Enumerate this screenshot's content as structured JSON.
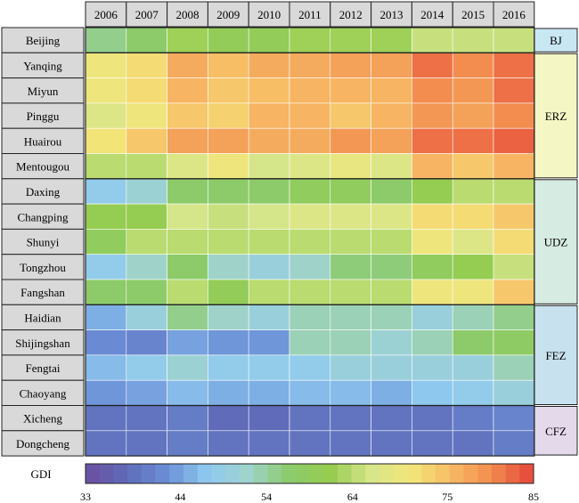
{
  "chart_data": {
    "type": "heatmap",
    "years": [
      "2006",
      "2007",
      "2008",
      "2009",
      "2010",
      "2011",
      "2012",
      "2013",
      "2014",
      "2015",
      "2016"
    ],
    "rows": [
      "Beijing",
      "Yanqing",
      "Miyun",
      "Pinggu",
      "Huairou",
      "Mentougou",
      "Daxing",
      "Changping",
      "Shunyi",
      "Tongzhou",
      "Fangshan",
      "Haidian",
      "Shijingshan",
      "Fengtai",
      "Chaoyang",
      "Xicheng",
      "Dongcheng"
    ],
    "values": [
      [
        55,
        57,
        62,
        60,
        60,
        62,
        62,
        62,
        65,
        65,
        65
      ],
      [
        70,
        72,
        77,
        75,
        77,
        77,
        78,
        78,
        82,
        80,
        82
      ],
      [
        70,
        72,
        76,
        74,
        75,
        76,
        76,
        76,
        80,
        79,
        82
      ],
      [
        67,
        70,
        74,
        73,
        76,
        76,
        74,
        76,
        79,
        78,
        80
      ],
      [
        71,
        74,
        78,
        78,
        77,
        77,
        79,
        78,
        82,
        82,
        83
      ],
      [
        64,
        64,
        67,
        70,
        66,
        67,
        69,
        67,
        76,
        74,
        76
      ],
      [
        48,
        51,
        57,
        57,
        57,
        59,
        59,
        57,
        61,
        64,
        64
      ],
      [
        61,
        61,
        66,
        65,
        66,
        67,
        67,
        67,
        72,
        72,
        74
      ],
      [
        59,
        64,
        64,
        64,
        64,
        64,
        64,
        64,
        70,
        67,
        72
      ],
      [
        48,
        52,
        57,
        52,
        50,
        52,
        56,
        56,
        59,
        61,
        65
      ],
      [
        57,
        57,
        64,
        60,
        64,
        64,
        64,
        64,
        70,
        70,
        74
      ],
      [
        45,
        50,
        55,
        52,
        50,
        53,
        53,
        53,
        50,
        53,
        55
      ],
      [
        42,
        41,
        44,
        43,
        43,
        53,
        53,
        51,
        53,
        57,
        58
      ],
      [
        46,
        48,
        51,
        48,
        48,
        48,
        50,
        50,
        50,
        50,
        53
      ],
      [
        43,
        44,
        46,
        45,
        45,
        46,
        46,
        45,
        47,
        48,
        50
      ],
      [
        39,
        39,
        40,
        38,
        38,
        39,
        39,
        39,
        39,
        40,
        41
      ],
      [
        39,
        39,
        40,
        39,
        39,
        39,
        39,
        39,
        39,
        39,
        40
      ]
    ],
    "groups": [
      {
        "label": "BJ",
        "rows": [
          0,
          0
        ],
        "color": "#c9e6f3"
      },
      {
        "label": "ERZ",
        "rows": [
          1,
          5
        ],
        "color": "#f4f6c4"
      },
      {
        "label": "UDZ",
        "rows": [
          6,
          10
        ],
        "color": "#d6ebe2"
      },
      {
        "label": "FEZ",
        "rows": [
          11,
          14
        ],
        "color": "#c7e1ee"
      },
      {
        "label": "CFZ",
        "rows": [
          15,
          16
        ],
        "color": "#e4d9eb"
      }
    ],
    "colorbar": {
      "label": "GDI",
      "min": 33,
      "max": 85,
      "ticks": [
        "33",
        "44",
        "54",
        "64",
        "75",
        "85"
      ],
      "tick_values": [
        33,
        44,
        54,
        64,
        75,
        85
      ],
      "stops": [
        "#6b4fa0",
        "#5f6ab8",
        "#6b8fd6",
        "#8fcaf0",
        "#9fd3cc",
        "#8ccb6c",
        "#96cc50",
        "#d6e68a",
        "#f3e679",
        "#f7b964",
        "#f28a4e",
        "#e4443a"
      ]
    }
  }
}
